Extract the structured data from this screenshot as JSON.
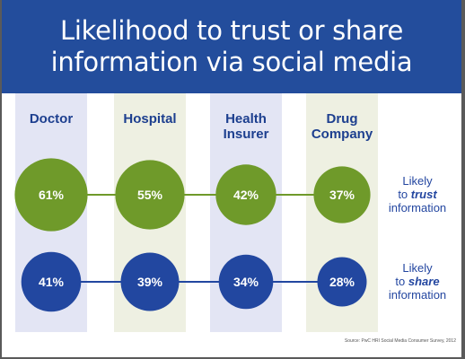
{
  "title": {
    "line1": "Likelihood to trust or share",
    "line2": "information via social media"
  },
  "colors": {
    "header_bg": "#234d9c",
    "trust_green": "#6f9a2a",
    "share_blue": "#2247a0",
    "band_blue": "#e3e5f4",
    "band_green": "#eef0e2",
    "label_blue": "#1d3f8f"
  },
  "columns": [
    {
      "line1": "Doctor",
      "line2": ""
    },
    {
      "line1": "Hospital",
      "line2": ""
    },
    {
      "line1": "Health",
      "line2": "Insurer"
    },
    {
      "line1": "Drug",
      "line2": "Company"
    }
  ],
  "rows": {
    "trust": {
      "line1": "Likely",
      "pre": "to ",
      "emph": "trust",
      "line3": "information"
    },
    "share": {
      "line1": "Likely",
      "pre": "to ",
      "emph": "share",
      "line3": "information"
    }
  },
  "source": "Source: PwC HRI Social Media Consumer Survey, 2012",
  "chart_data": {
    "type": "bubble",
    "categories": [
      "Doctor",
      "Hospital",
      "Health Insurer",
      "Drug Company"
    ],
    "series": [
      {
        "name": "Likely to trust information",
        "values": [
          61,
          55,
          42,
          37
        ],
        "labels": [
          "61%",
          "55%",
          "42%",
          "37%"
        ]
      },
      {
        "name": "Likely to share information",
        "values": [
          41,
          39,
          34,
          28
        ],
        "labels": [
          "41%",
          "39%",
          "34%",
          "28%"
        ]
      }
    ]
  }
}
